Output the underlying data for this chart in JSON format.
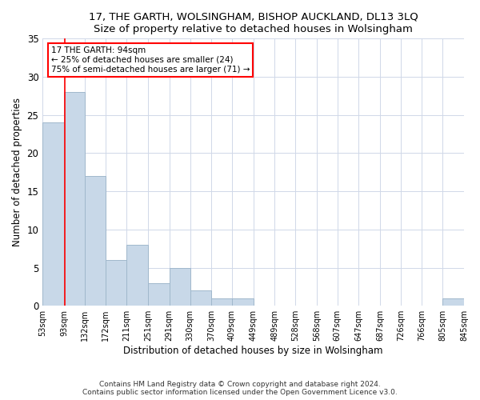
{
  "title1": "17, THE GARTH, WOLSINGHAM, BISHOP AUCKLAND, DL13 3LQ",
  "title2": "Size of property relative to detached houses in Wolsingham",
  "xlabel": "Distribution of detached houses by size in Wolsingham",
  "ylabel": "Number of detached properties",
  "footer1": "Contains HM Land Registry data © Crown copyright and database right 2024.",
  "footer2": "Contains public sector information licensed under the Open Government Licence v3.0.",
  "bin_edges": [
    53,
    93,
    132,
    172,
    211,
    251,
    291,
    330,
    370,
    409,
    449,
    489,
    528,
    568,
    607,
    647,
    687,
    726,
    766,
    805,
    845
  ],
  "bar_heights": [
    24,
    28,
    17,
    6,
    8,
    3,
    5,
    2,
    1,
    1,
    0,
    0,
    0,
    0,
    0,
    0,
    0,
    0,
    0,
    1
  ],
  "tick_labels": [
    "53sqm",
    "93sqm",
    "132sqm",
    "172sqm",
    "211sqm",
    "251sqm",
    "291sqm",
    "330sqm",
    "370sqm",
    "409sqm",
    "449sqm",
    "489sqm",
    "528sqm",
    "568sqm",
    "607sqm",
    "647sqm",
    "687sqm",
    "726sqm",
    "766sqm",
    "805sqm",
    "845sqm"
  ],
  "bar_color": "#c8d8e8",
  "bar_edge_color": "#a0b8cc",
  "grid_color": "#d0d8e8",
  "annotation_line1": "17 THE GARTH: 94sqm",
  "annotation_line2": "← 25% of detached houses are smaller (24)",
  "annotation_line3": "75% of semi-detached houses are larger (71) →",
  "property_line_x": 94,
  "annotation_box_edge_color": "red",
  "property_line_color": "red",
  "ylim": [
    0,
    35
  ],
  "yticks": [
    0,
    5,
    10,
    15,
    20,
    25,
    30,
    35
  ]
}
